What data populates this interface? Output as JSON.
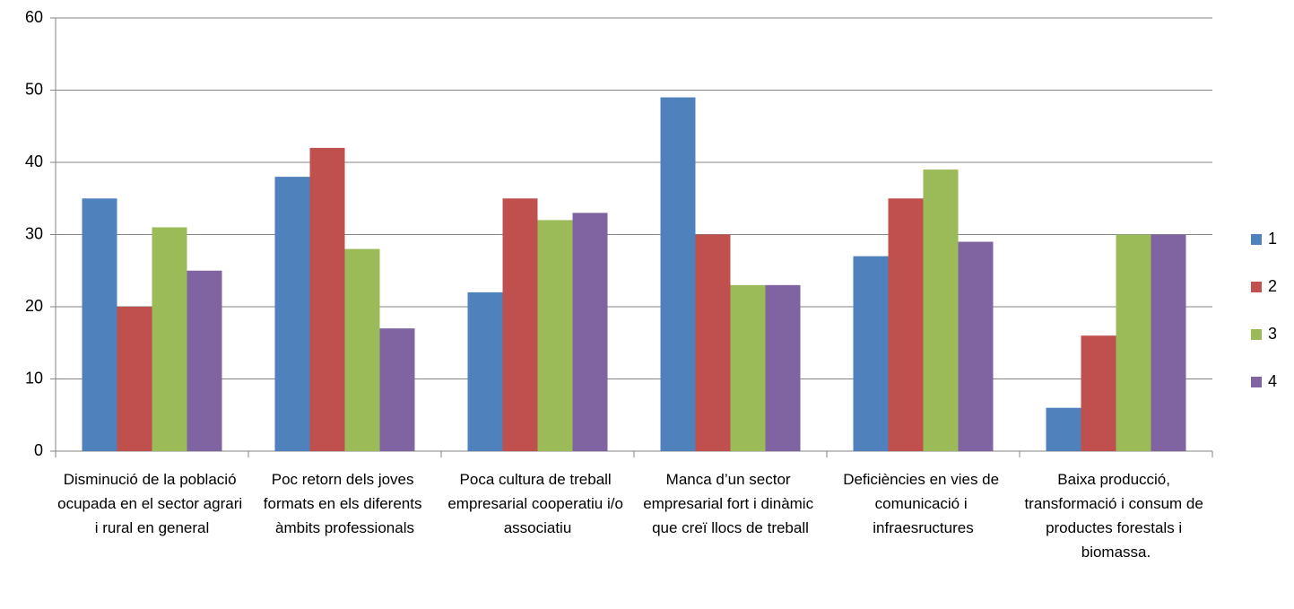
{
  "chart_data": {
    "type": "bar",
    "categories": [
      "Disminució de la població ocupada en el sector agrari i rural en general",
      "Poc retorn dels joves formats en els diferents àmbits professionals",
      "Poca cultura de treball empresarial cooperatiu i/o associatiu",
      "Manca d’un sector empresarial fort i dinàmic que creï llocs de treball",
      "Deficiències en vies de comunicació i infraesructures",
      "Baixa producció, transformació i consum de productes forestals i biomassa."
    ],
    "series": [
      {
        "name": "1",
        "color": "#4f81bd",
        "values": [
          35,
          38,
          22,
          49,
          27,
          6
        ]
      },
      {
        "name": "2",
        "color": "#c0504d",
        "values": [
          20,
          42,
          35,
          30,
          35,
          16
        ]
      },
      {
        "name": "3",
        "color": "#9bbb59",
        "values": [
          31,
          28,
          32,
          23,
          39,
          30
        ]
      },
      {
        "name": "4",
        "color": "#8064a2",
        "values": [
          25,
          17,
          33,
          23,
          29,
          30
        ]
      }
    ],
    "ylim": [
      0,
      60
    ],
    "yticks": [
      0,
      10,
      20,
      30,
      40,
      50,
      60
    ],
    "grid": true,
    "legend": "right"
  }
}
